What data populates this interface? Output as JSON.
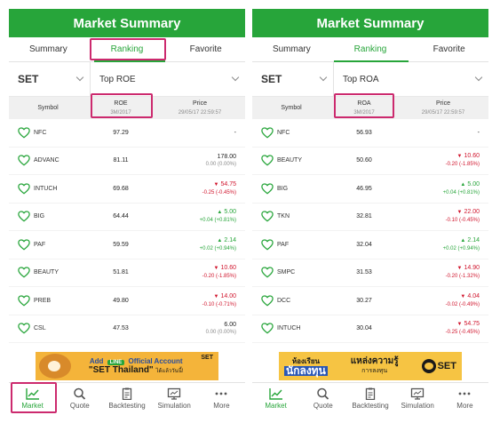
{
  "colors": {
    "accent": "#27a53a",
    "up": "#27a53a",
    "down": "#d0142c",
    "highlight": "#cc2a6e"
  },
  "panels": [
    {
      "header": {
        "title": "Market Summary"
      },
      "tabs": [
        {
          "label": "Summary"
        },
        {
          "label": "Ranking"
        },
        {
          "label": "Favorite"
        }
      ],
      "active_tab": 1,
      "market": {
        "value": "SET"
      },
      "criteria": {
        "value": "Top ROE"
      },
      "columns": {
        "symbol": "Symbol",
        "metric": "ROE",
        "metric_sub": "3M/2017",
        "price": "Price",
        "price_sub": "29/05/17 22:59:57"
      },
      "rows": [
        {
          "symbol": "NFC",
          "value": "97.29",
          "price": "-",
          "change": "",
          "dir": "none"
        },
        {
          "symbol": "ADVANC",
          "value": "81.11",
          "price": "178.00",
          "change": "0.00 (0.00%)",
          "dir": "none"
        },
        {
          "symbol": "INTUCH",
          "value": "69.68",
          "price": "54.75",
          "change": "-0.25 (-0.45%)",
          "dir": "down"
        },
        {
          "symbol": "BIG",
          "value": "64.44",
          "price": "5.00",
          "change": "+0.04 (+0.81%)",
          "dir": "up"
        },
        {
          "symbol": "PAF",
          "value": "59.59",
          "price": "2.14",
          "change": "+0.02 (+0.94%)",
          "dir": "up"
        },
        {
          "symbol": "BEAUTY",
          "value": "51.81",
          "price": "10.60",
          "change": "-0.20 (-1.85%)",
          "dir": "down"
        },
        {
          "symbol": "PREB",
          "value": "49.80",
          "price": "14.00",
          "change": "-0.10 (-0.71%)",
          "dir": "down"
        },
        {
          "symbol": "CSL",
          "value": "47.53",
          "price": "6.00",
          "change": "0.00 (0.00%)",
          "dir": "none"
        }
      ],
      "banner": {
        "line1_a": "Add",
        "line1_badge": "LINE",
        "line1_b": "Official Account",
        "line2": "\"SET Thailand\"",
        "line2_small": "ได้แล้ววันนี้!",
        "logo": "SET"
      },
      "nav": [
        {
          "label": "Market",
          "icon": "chart-icon"
        },
        {
          "label": "Quote",
          "icon": "search-icon"
        },
        {
          "label": "Backtesting",
          "icon": "clipboard-icon"
        },
        {
          "label": "Simulation",
          "icon": "monitor-icon"
        },
        {
          "label": "More",
          "icon": "more-icon"
        }
      ],
      "active_nav": 0
    },
    {
      "header": {
        "title": "Market Summary"
      },
      "tabs": [
        {
          "label": "Summary"
        },
        {
          "label": "Ranking"
        },
        {
          "label": "Favorite"
        }
      ],
      "active_tab": 1,
      "market": {
        "value": "SET"
      },
      "criteria": {
        "value": "Top ROA"
      },
      "columns": {
        "symbol": "Symbol",
        "metric": "ROA",
        "metric_sub": "3M/2017",
        "price": "Price",
        "price_sub": "29/05/17 22:59:57"
      },
      "rows": [
        {
          "symbol": "NFC",
          "value": "56.93",
          "price": "-",
          "change": "",
          "dir": "none"
        },
        {
          "symbol": "BEAUTY",
          "value": "50.60",
          "price": "10.60",
          "change": "-0.20 (-1.85%)",
          "dir": "down"
        },
        {
          "symbol": "BIG",
          "value": "46.95",
          "price": "5.00",
          "change": "+0.04 (+0.81%)",
          "dir": "up"
        },
        {
          "symbol": "TKN",
          "value": "32.81",
          "price": "22.00",
          "change": "-0.10 (-0.45%)",
          "dir": "down"
        },
        {
          "symbol": "PAF",
          "value": "32.04",
          "price": "2.14",
          "change": "+0.02 (+0.94%)",
          "dir": "up"
        },
        {
          "symbol": "SMPC",
          "value": "31.53",
          "price": "14.90",
          "change": "-0.20 (-1.32%)",
          "dir": "down"
        },
        {
          "symbol": "DCC",
          "value": "30.27",
          "price": "4.04",
          "change": "-0.02 (-0.49%)",
          "dir": "down"
        },
        {
          "symbol": "INTUCH",
          "value": "30.04",
          "price": "54.75",
          "change": "-0.25 (-0.45%)",
          "dir": "down"
        }
      ],
      "banner": {
        "t1": "ห้องเรียน",
        "t2": "นักลงทุน",
        "t3": "แหล่งความรู้",
        "t4": "การลงทุน",
        "logo": "SET"
      },
      "nav": [
        {
          "label": "Market",
          "icon": "chart-icon"
        },
        {
          "label": "Quote",
          "icon": "search-icon"
        },
        {
          "label": "Backtesting",
          "icon": "clipboard-icon"
        },
        {
          "label": "Simulation",
          "icon": "monitor-icon"
        },
        {
          "label": "More",
          "icon": "more-icon"
        }
      ],
      "active_nav": 0
    }
  ]
}
